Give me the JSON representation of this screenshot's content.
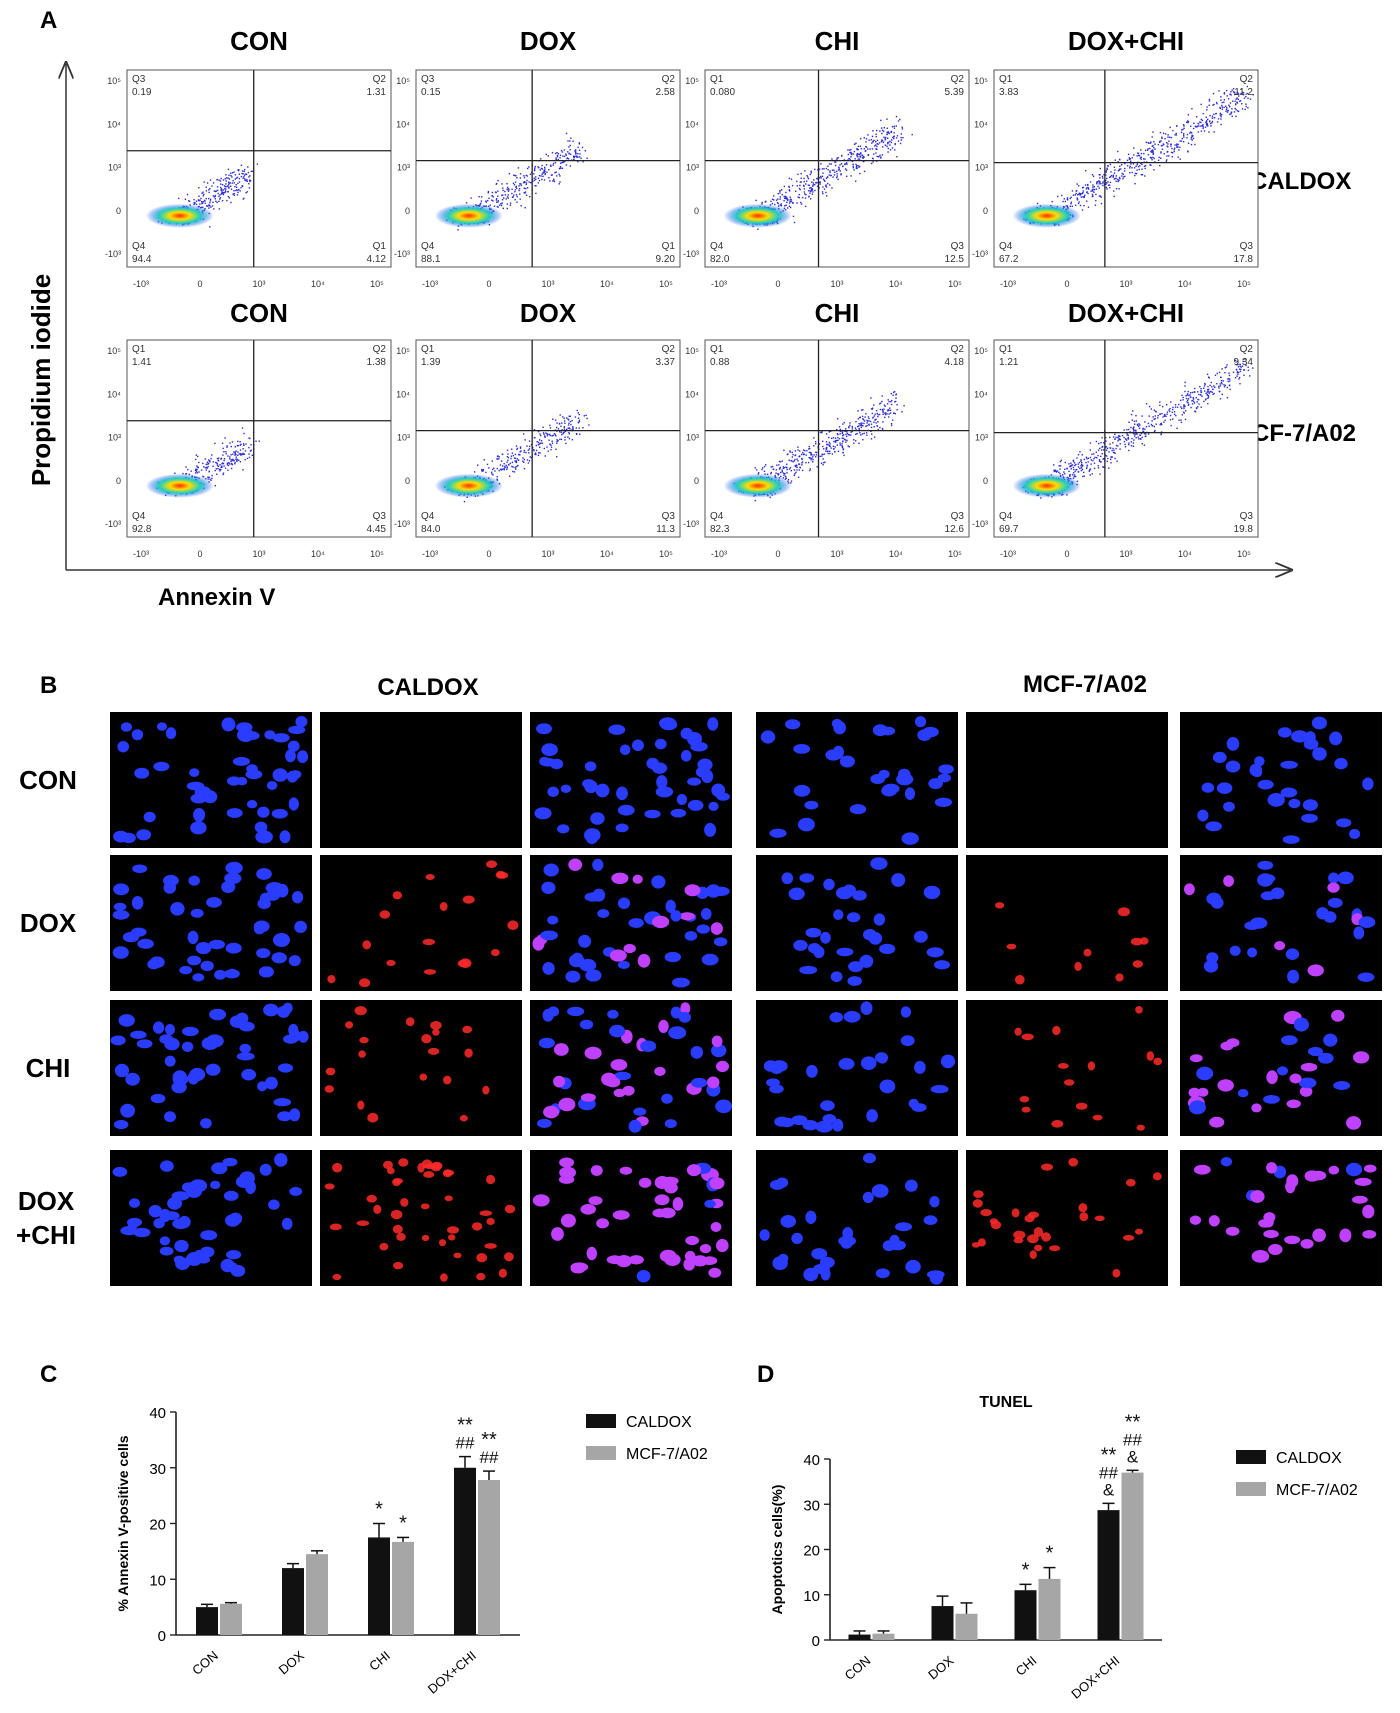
{
  "panel_letters": {
    "a": "A",
    "b": "B",
    "c": "C",
    "d": "D"
  },
  "colors": {
    "caldox_bar": "#111111",
    "mcf_bar": "#a6a6a6",
    "flow_dot": "#2b2bd6",
    "dapi": "#2a3cff",
    "tunel_red": "#ff2a2a",
    "merge_pink": "#c040ff"
  },
  "panel_a": {
    "y_axis_label": "Propidium iodide",
    "x_axis_label": "Annexin V",
    "rows": [
      {
        "cell_line": "CALDOX",
        "plots": [
          {
            "title": "CON",
            "q_tl_name": "Q3",
            "q_tl": "0.19",
            "q_tr_name": "Q2",
            "q_tr": "1.31",
            "q_bl_name": "Q4",
            "q_bl": "94.4",
            "q_br_name": "Q1",
            "q_br": "4.12"
          },
          {
            "title": "DOX",
            "q_tl_name": "Q3",
            "q_tl": "0.15",
            "q_tr_name": "Q2",
            "q_tr": "2.58",
            "q_bl_name": "Q4",
            "q_bl": "88.1",
            "q_br_name": "Q1",
            "q_br": "9.20"
          },
          {
            "title": "CHI",
            "q_tl_name": "Q1",
            "q_tl": "0.080",
            "q_tr_name": "Q2",
            "q_tr": "5.39",
            "q_bl_name": "Q4",
            "q_bl": "82.0",
            "q_br_name": "Q3",
            "q_br": "12.5"
          },
          {
            "title": "DOX+CHI",
            "q_tl_name": "Q1",
            "q_tl": "3.83",
            "q_tr_name": "Q2",
            "q_tr": "11.2",
            "q_bl_name": "Q4",
            "q_bl": "67.2",
            "q_br_name": "Q3",
            "q_br": "17.8"
          }
        ]
      },
      {
        "cell_line": "MCF-7/A02",
        "plots": [
          {
            "title": "CON",
            "q_tl_name": "Q1",
            "q_tl": "1.41",
            "q_tr_name": "Q2",
            "q_tr": "1.38",
            "q_bl_name": "Q4",
            "q_bl": "92.8",
            "q_br_name": "Q3",
            "q_br": "4.45"
          },
          {
            "title": "DOX",
            "q_tl_name": "Q1",
            "q_tl": "1.39",
            "q_tr_name": "Q2",
            "q_tr": "3.37",
            "q_bl_name": "Q4",
            "q_bl": "84.0",
            "q_br_name": "Q3",
            "q_br": "11.3"
          },
          {
            "title": "CHI",
            "q_tl_name": "Q1",
            "q_tl": "0.88",
            "q_tr_name": "Q2",
            "q_tr": "4.18",
            "q_bl_name": "Q4",
            "q_bl": "82.3",
            "q_br_name": "Q3",
            "q_br": "12.6"
          },
          {
            "title": "DOX+CHI",
            "q_tl_name": "Q1",
            "q_tl": "1.21",
            "q_tr_name": "Q2",
            "q_tr": "9.34",
            "q_bl_name": "Q4",
            "q_bl": "69.7",
            "q_br_name": "Q3",
            "q_br": "19.8"
          }
        ]
      }
    ],
    "x_ticks": [
      "-10³",
      "0",
      "10³",
      "10⁴",
      "10⁵"
    ],
    "y_ticks": [
      "10⁵",
      "10⁴",
      "10³",
      "0",
      "-10³"
    ]
  },
  "panel_b": {
    "groups": [
      {
        "title": "CALDOX"
      },
      {
        "title": "MCF-7/A02"
      }
    ],
    "row_labels": [
      "CON",
      "DOX",
      "CHI",
      "DOX\n+CHI"
    ],
    "red_density": [
      0.02,
      0.35,
      0.45,
      0.9
    ],
    "merge_density": [
      0.0,
      0.3,
      0.45,
      0.9
    ]
  },
  "chart_data": [
    {
      "type": "bar",
      "title": "",
      "xlabel": "",
      "ylabel": "% Annexin V-positive cells",
      "ylim": [
        0,
        40
      ],
      "yticks": [
        "0",
        "10",
        "20",
        "30",
        "40"
      ],
      "categories": [
        "CON",
        "DOX",
        "CHI",
        "DOX+CHI"
      ],
      "series": [
        {
          "name": "CALDOX",
          "values": [
            5.0,
            12.0,
            17.5,
            30.0
          ],
          "errors": [
            0.5,
            0.8,
            2.5,
            2.0
          ],
          "annotations": [
            "",
            "",
            "*",
            "**\n##"
          ]
        },
        {
          "name": "MCF-7/A02",
          "values": [
            5.6,
            14.5,
            16.7,
            27.8
          ],
          "errors": [
            0.2,
            0.6,
            0.8,
            1.6
          ],
          "annotations": [
            "",
            "",
            "*",
            "**\n##"
          ]
        }
      ],
      "legend_position": "right"
    },
    {
      "type": "bar",
      "title": "TUNEL",
      "xlabel": "",
      "ylabel": "Apoptotics cells(%)",
      "ylim": [
        0,
        40
      ],
      "yticks": [
        "0",
        "10",
        "20",
        "30",
        "40"
      ],
      "categories": [
        "CON",
        "DOX",
        "CHI",
        "DOX+CHI"
      ],
      "series": [
        {
          "name": "CALDOX",
          "values": [
            1.2,
            7.5,
            11.0,
            28.7
          ],
          "errors": [
            0.8,
            2.2,
            1.3,
            1.5
          ],
          "annotations": [
            "",
            "",
            "*",
            "**\n##\n&"
          ]
        },
        {
          "name": "MCF-7/A02",
          "values": [
            1.4,
            5.8,
            13.5,
            37.0
          ],
          "errors": [
            0.6,
            2.4,
            2.5,
            0.5
          ],
          "annotations": [
            "",
            "",
            "*",
            "**\n##\n&"
          ]
        }
      ],
      "legend_position": "right"
    }
  ]
}
